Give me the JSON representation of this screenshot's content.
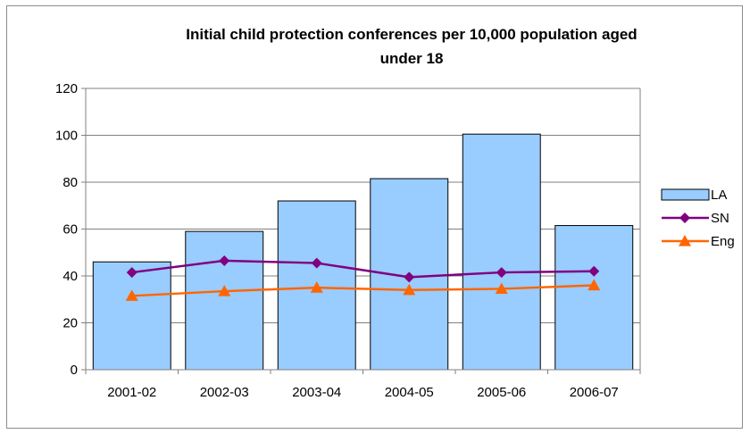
{
  "chart_data": {
    "type": "bar",
    "title_lines": [
      "Initial child protection conferences per 10,000 population aged",
      "under 18"
    ],
    "categories": [
      "2001-02",
      "2002-03",
      "2003-04",
      "2004-05",
      "2005-06",
      "2006-07"
    ],
    "ylim": [
      0,
      120
    ],
    "yticks": [
      0,
      20,
      40,
      60,
      80,
      100,
      120
    ],
    "grid": true,
    "legend_position": "right",
    "series": [
      {
        "name": "LA",
        "kind": "bar",
        "color": "#99ccff",
        "values": [
          46,
          59,
          72,
          81.5,
          100.5,
          61.5
        ]
      },
      {
        "name": "SN",
        "kind": "line",
        "marker": "diamond",
        "color": "#800080",
        "values": [
          41.5,
          46.5,
          45.5,
          39.5,
          41.5,
          42
        ]
      },
      {
        "name": "Eng",
        "kind": "line",
        "marker": "triangle",
        "color": "#ff6600",
        "values": [
          31.5,
          33.5,
          35,
          34,
          34.5,
          36
        ]
      }
    ]
  }
}
